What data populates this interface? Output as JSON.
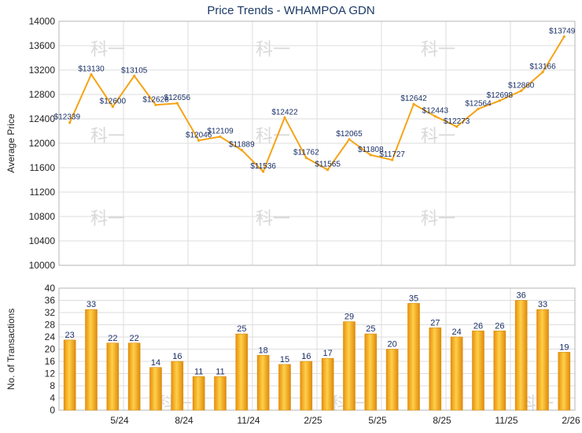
{
  "title": "Price Trends - WHAMPOA GDN",
  "watermark": "科一",
  "chart_data": [
    {
      "type": "line",
      "title": "Price Trends - WHAMPOA GDN",
      "ylabel": "Average Price",
      "ylim": [
        10000,
        14000
      ],
      "yticks": [
        10000,
        10400,
        10800,
        11200,
        11600,
        12000,
        12400,
        12800,
        13200,
        13600,
        14000
      ],
      "grid": true,
      "color": "#f5a416",
      "series": [
        {
          "values": [
            12339,
            13130,
            12600,
            13105,
            12628,
            12656,
            12046,
            12109,
            11889,
            11536,
            12422,
            11762,
            11565,
            12065,
            11808,
            11727,
            12642,
            12443,
            12273,
            12564,
            12698,
            12860,
            13166,
            13749
          ],
          "labels": [
            "$12339",
            "$13130",
            "$12600",
            "$13105",
            "$12628",
            "$12656",
            "$12046",
            "$12109",
            "$11889",
            "$11536",
            "$12422",
            "$11762",
            "$11565",
            "$12065",
            "$11808",
            "$11727",
            "$12642",
            "$12443",
            "$12273",
            "$12564",
            "$12698",
            "$12860",
            "$13166",
            "$13749"
          ]
        }
      ]
    },
    {
      "type": "bar",
      "ylabel": "No. of Transactions",
      "ylim": [
        0,
        40
      ],
      "yticks": [
        0,
        4,
        8,
        12,
        16,
        20,
        24,
        28,
        32,
        36,
        40
      ],
      "xticks": [
        {
          "index": 2,
          "label": "5/24"
        },
        {
          "index": 5,
          "label": "8/24"
        },
        {
          "index": 8,
          "label": "11/24"
        },
        {
          "index": 11,
          "label": "2/25"
        },
        {
          "index": 14,
          "label": "5/25"
        },
        {
          "index": 17,
          "label": "8/25"
        },
        {
          "index": 20,
          "label": "11/25"
        },
        {
          "index": 23,
          "label": "2/26"
        }
      ],
      "grid": true,
      "color": "#f5a416",
      "values": [
        23,
        33,
        22,
        22,
        14,
        16,
        11,
        11,
        25,
        18,
        15,
        16,
        17,
        29,
        25,
        20,
        35,
        27,
        24,
        26,
        26,
        36,
        33,
        19
      ]
    }
  ]
}
